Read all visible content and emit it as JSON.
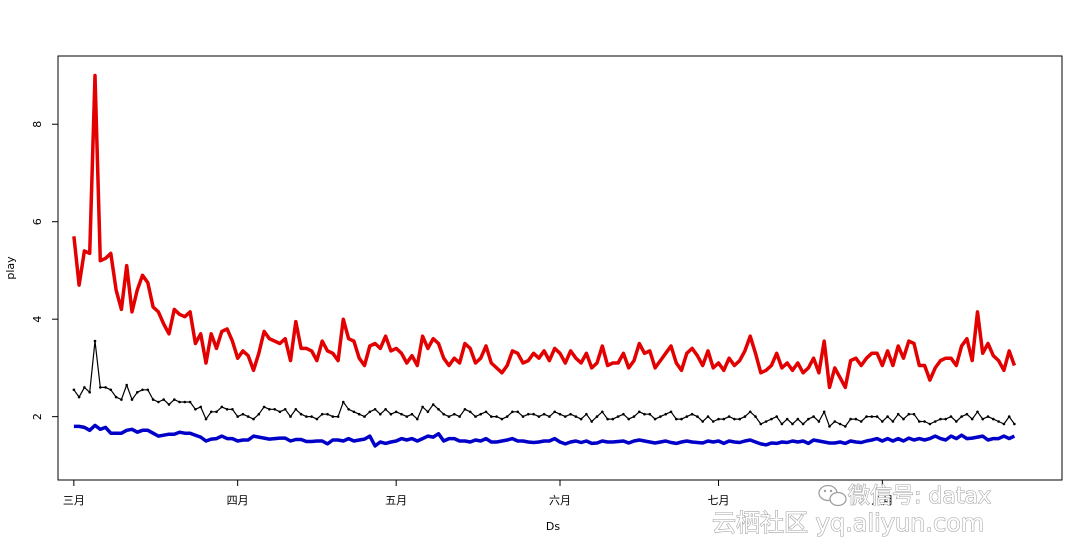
{
  "chart_data": {
    "type": "line",
    "title": "",
    "xlabel": "Ds",
    "ylabel": "play",
    "x_ticks": [
      "三月",
      "四月",
      "五月",
      "六月",
      "七月",
      "八月"
    ],
    "y_ticks": [
      2,
      4,
      6,
      8
    ],
    "ylim": [
      0.7,
      9.4
    ],
    "xlim_days": [
      -3,
      187
    ],
    "grid": false,
    "legend": "none",
    "x_start": "03-01",
    "colors": {
      "red": "#e30000",
      "black": "#000000",
      "blue": "#0000c8"
    },
    "series": [
      {
        "color": "#e30000",
        "values": [
          5.7,
          4.7,
          5.4,
          5.35,
          9.0,
          5.2,
          5.25,
          5.35,
          4.6,
          4.2,
          5.1,
          4.15,
          4.6,
          4.9,
          4.75,
          4.25,
          4.15,
          3.9,
          3.7,
          4.2,
          4.1,
          4.05,
          4.15,
          3.5,
          3.7,
          3.1,
          3.7,
          3.4,
          3.75,
          3.8,
          3.55,
          3.2,
          3.35,
          3.25,
          2.95,
          3.3,
          3.75,
          3.6,
          3.55,
          3.5,
          3.6,
          3.15,
          3.95,
          3.4,
          3.4,
          3.35,
          3.15,
          3.55,
          3.35,
          3.3,
          3.15,
          4.0,
          3.6,
          3.55,
          3.2,
          3.05,
          3.45,
          3.5,
          3.4,
          3.65,
          3.35,
          3.4,
          3.3,
          3.1,
          3.25,
          3.05,
          3.65,
          3.4,
          3.6,
          3.5,
          3.2,
          3.05,
          3.2,
          3.1,
          3.5,
          3.4,
          3.1,
          3.2,
          3.45,
          3.1,
          3.0,
          2.9,
          3.05,
          3.35,
          3.3,
          3.1,
          3.15,
          3.3,
          3.2,
          3.35,
          3.15,
          3.4,
          3.3,
          3.1,
          3.35,
          3.2,
          3.1,
          3.3,
          3.0,
          3.1,
          3.45,
          3.05,
          3.1,
          3.1,
          3.3,
          3.0,
          3.15,
          3.5,
          3.3,
          3.35,
          3.0,
          3.15,
          3.3,
          3.45,
          3.1,
          2.95,
          3.3,
          3.4,
          3.25,
          3.05,
          3.35,
          3.0,
          3.1,
          2.95,
          3.2,
          3.05,
          3.15,
          3.35,
          3.65,
          3.3,
          2.9,
          2.95,
          3.05,
          3.3,
          3.0,
          3.1,
          2.95,
          3.1,
          2.9,
          3.0,
          3.2,
          2.9,
          3.55,
          2.6,
          3.0,
          2.8,
          2.6,
          3.15,
          3.2,
          3.05,
          3.2,
          3.3,
          3.3,
          3.05,
          3.35,
          3.05,
          3.45,
          3.2,
          3.55,
          3.5,
          3.05,
          3.05,
          2.75,
          3.0,
          3.15,
          3.2,
          3.2,
          3.05,
          3.45,
          3.6,
          3.15,
          4.15,
          3.3,
          3.5,
          3.25,
          3.15,
          2.95,
          3.35,
          3.05
        ],
        "width": 3.5
      },
      {
        "color": "#000000",
        "values": [
          2.55,
          2.4,
          2.6,
          2.5,
          3.55,
          2.6,
          2.6,
          2.55,
          2.4,
          2.35,
          2.65,
          2.35,
          2.5,
          2.55,
          2.55,
          2.35,
          2.3,
          2.35,
          2.25,
          2.35,
          2.3,
          2.3,
          2.3,
          2.15,
          2.2,
          1.95,
          2.1,
          2.1,
          2.2,
          2.15,
          2.15,
          2.0,
          2.05,
          2.0,
          1.95,
          2.05,
          2.2,
          2.15,
          2.15,
          2.1,
          2.15,
          2.0,
          2.15,
          2.05,
          2.0,
          2.0,
          1.95,
          2.05,
          2.05,
          2.0,
          2.0,
          2.3,
          2.15,
          2.1,
          2.05,
          2.0,
          2.1,
          2.15,
          2.05,
          2.15,
          2.05,
          2.1,
          2.05,
          2.0,
          2.05,
          1.95,
          2.2,
          2.1,
          2.25,
          2.15,
          2.05,
          2.0,
          2.05,
          2.0,
          2.15,
          2.1,
          2.0,
          2.05,
          2.1,
          2.0,
          2.0,
          1.95,
          2.0,
          2.1,
          2.1,
          2.0,
          2.05,
          2.05,
          2.0,
          2.05,
          2.0,
          2.1,
          2.05,
          2.0,
          2.05,
          2.0,
          1.95,
          2.05,
          1.9,
          2.0,
          2.1,
          1.95,
          1.95,
          2.0,
          2.05,
          1.95,
          2.0,
          2.1,
          2.05,
          2.05,
          1.95,
          2.0,
          2.05,
          2.1,
          1.95,
          1.95,
          2.0,
          2.05,
          2.0,
          1.9,
          2.0,
          1.9,
          1.95,
          1.95,
          2.0,
          1.95,
          1.95,
          2.0,
          2.1,
          2.0,
          1.85,
          1.9,
          1.95,
          2.0,
          1.85,
          1.95,
          1.85,
          1.95,
          1.85,
          1.95,
          2.0,
          1.9,
          2.1,
          1.8,
          1.9,
          1.85,
          1.8,
          1.95,
          1.95,
          1.9,
          2.0,
          2.0,
          2.0,
          1.9,
          2.0,
          1.9,
          2.05,
          1.95,
          2.05,
          2.05,
          1.9,
          1.9,
          1.85,
          1.9,
          1.95,
          1.95,
          2.0,
          1.9,
          2.0,
          2.05,
          1.95,
          2.1,
          1.95,
          2.0,
          1.95,
          1.9,
          1.85,
          2.0,
          1.85
        ],
        "width": 1.2
      },
      {
        "color": "#0000c8",
        "values": [
          1.8,
          1.8,
          1.78,
          1.72,
          1.82,
          1.74,
          1.78,
          1.66,
          1.66,
          1.66,
          1.72,
          1.74,
          1.68,
          1.72,
          1.72,
          1.66,
          1.6,
          1.62,
          1.64,
          1.64,
          1.68,
          1.66,
          1.66,
          1.62,
          1.58,
          1.5,
          1.54,
          1.55,
          1.6,
          1.55,
          1.55,
          1.5,
          1.52,
          1.52,
          1.6,
          1.58,
          1.56,
          1.54,
          1.55,
          1.56,
          1.56,
          1.5,
          1.53,
          1.53,
          1.49,
          1.49,
          1.5,
          1.5,
          1.44,
          1.52,
          1.52,
          1.5,
          1.55,
          1.5,
          1.52,
          1.54,
          1.6,
          1.4,
          1.48,
          1.45,
          1.48,
          1.5,
          1.55,
          1.52,
          1.55,
          1.5,
          1.55,
          1.6,
          1.58,
          1.65,
          1.5,
          1.55,
          1.55,
          1.5,
          1.5,
          1.48,
          1.52,
          1.5,
          1.55,
          1.48,
          1.48,
          1.5,
          1.52,
          1.55,
          1.5,
          1.5,
          1.48,
          1.47,
          1.48,
          1.5,
          1.5,
          1.55,
          1.48,
          1.44,
          1.48,
          1.5,
          1.47,
          1.5,
          1.45,
          1.46,
          1.5,
          1.48,
          1.48,
          1.49,
          1.5,
          1.46,
          1.5,
          1.52,
          1.5,
          1.48,
          1.46,
          1.48,
          1.5,
          1.47,
          1.45,
          1.48,
          1.5,
          1.48,
          1.47,
          1.46,
          1.5,
          1.48,
          1.5,
          1.45,
          1.5,
          1.48,
          1.47,
          1.5,
          1.52,
          1.48,
          1.44,
          1.42,
          1.46,
          1.45,
          1.48,
          1.47,
          1.5,
          1.48,
          1.5,
          1.45,
          1.52,
          1.5,
          1.48,
          1.46,
          1.46,
          1.48,
          1.45,
          1.5,
          1.48,
          1.47,
          1.5,
          1.52,
          1.55,
          1.5,
          1.55,
          1.5,
          1.55,
          1.5,
          1.56,
          1.52,
          1.55,
          1.52,
          1.55,
          1.6,
          1.55,
          1.52,
          1.6,
          1.55,
          1.62,
          1.55,
          1.56,
          1.58,
          1.6,
          1.52,
          1.55,
          1.55,
          1.6,
          1.55,
          1.6
        ],
        "width": 3.5
      }
    ]
  },
  "watermark": {
    "line1": "微信号: datax",
    "line2": "云栖社区 yq.aliyun.com",
    "icon": "wechat-icon"
  }
}
